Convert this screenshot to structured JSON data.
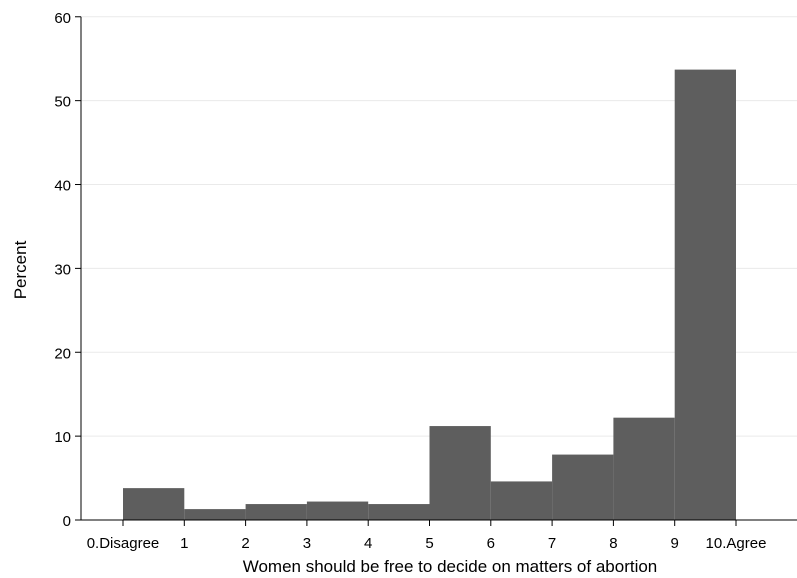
{
  "chart_data": {
    "type": "bar",
    "xlabel": "Women should be free to decide on matters of abortion",
    "ylabel": "Percent",
    "ylim": [
      0,
      62
    ],
    "yticks": [
      0,
      10,
      20,
      30,
      40,
      50,
      60
    ],
    "xlim": [
      -0.6,
      11.0
    ],
    "xticks": [
      {
        "value": 0,
        "label": "0.Disagree"
      },
      {
        "value": 1,
        "label": "1"
      },
      {
        "value": 2,
        "label": "2"
      },
      {
        "value": 3,
        "label": "3"
      },
      {
        "value": 4,
        "label": "4"
      },
      {
        "value": 5,
        "label": "5"
      },
      {
        "value": 6,
        "label": "6"
      },
      {
        "value": 7,
        "label": "7"
      },
      {
        "value": 8,
        "label": "8"
      },
      {
        "value": 9,
        "label": "9"
      },
      {
        "value": 10,
        "label": "10.Agree"
      }
    ],
    "bins": [
      {
        "start": 0,
        "end": 1,
        "value": 3.8
      },
      {
        "start": 1,
        "end": 2,
        "value": 1.3
      },
      {
        "start": 2,
        "end": 3,
        "value": 1.9
      },
      {
        "start": 3,
        "end": 4,
        "value": 2.2
      },
      {
        "start": 4,
        "end": 5,
        "value": 1.9
      },
      {
        "start": 5,
        "end": 6,
        "value": 11.2
      },
      {
        "start": 6,
        "end": 7,
        "value": 4.6
      },
      {
        "start": 7,
        "end": 8,
        "value": 7.8
      },
      {
        "start": 8,
        "end": 9,
        "value": 12.2
      },
      {
        "start": 9,
        "end": 10,
        "value": 53.7
      }
    ],
    "grid": true,
    "colors": {
      "bar": "#5e5e5e",
      "grid": "#eaeaea",
      "axis": "#000000"
    }
  }
}
